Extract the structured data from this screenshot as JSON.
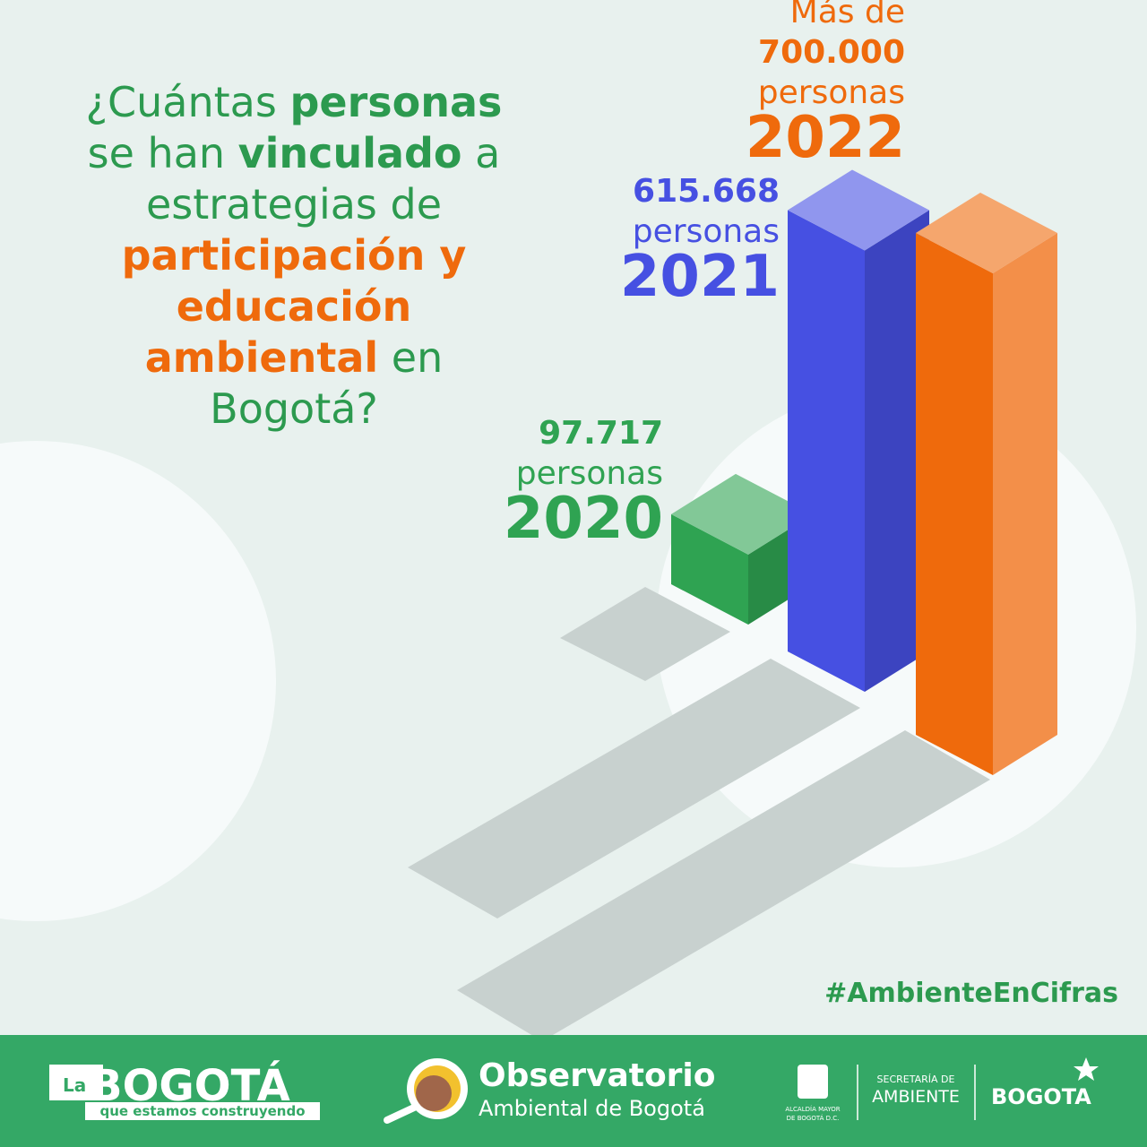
{
  "chart_data": {
    "type": "bar3d",
    "title_lines": [
      [
        {
          "text": "¿Cuántas ",
          "bold": false,
          "color": "#2c9a4f"
        },
        {
          "text": "personas",
          "bold": true,
          "color": "#2c9a4f"
        }
      ],
      [
        {
          "text": "se han ",
          "bold": false,
          "color": "#2c9a4f"
        },
        {
          "text": "vinculado",
          "bold": true,
          "color": "#2c9a4f"
        },
        {
          "text": " a",
          "bold": false,
          "color": "#2c9a4f"
        }
      ],
      [
        {
          "text": "estrategias de",
          "bold": false,
          "color": "#2c9a4f"
        }
      ],
      [
        {
          "text": "participación y",
          "bold": true,
          "color": "#ef6a0c"
        }
      ],
      [
        {
          "text": "educación",
          "bold": true,
          "color": "#ef6a0c"
        }
      ],
      [
        {
          "text": "ambiental",
          "bold": true,
          "color": "#ef6a0c"
        },
        {
          "text": " en",
          "bold": false,
          "color": "#2c9a4f"
        }
      ],
      [
        {
          "text": "Bogotá?",
          "bold": false,
          "color": "#2c9a4f"
        }
      ]
    ],
    "categories": [
      "2020",
      "2021",
      "2022"
    ],
    "values": [
      97717,
      615668,
      700000
    ],
    "value_labels": [
      "97.717",
      "615.668",
      "700.000"
    ],
    "unit": "personas",
    "annotations": [
      {
        "text": "Más de",
        "category": "2022"
      }
    ],
    "colors": [
      "#2fa352",
      "#4650e2",
      "#ef6a0c"
    ],
    "hashtag": "#AmbienteEnCifras"
  },
  "footer": {
    "logo_la": "La",
    "logo_bogota": "BOGOTÁ",
    "logo_tagline": "que estamos construyendo",
    "observatorio": "Observatorio",
    "observatorio_sub": "Ambiental de Bogotá",
    "alcaldia": [
      "ALCALDÍA MAYOR",
      "DE BOGOTÁ D.C."
    ],
    "secretaria": "SECRETARÍA DE",
    "ambiente": "AMBIENTE",
    "bogota": "BOGOTA"
  }
}
